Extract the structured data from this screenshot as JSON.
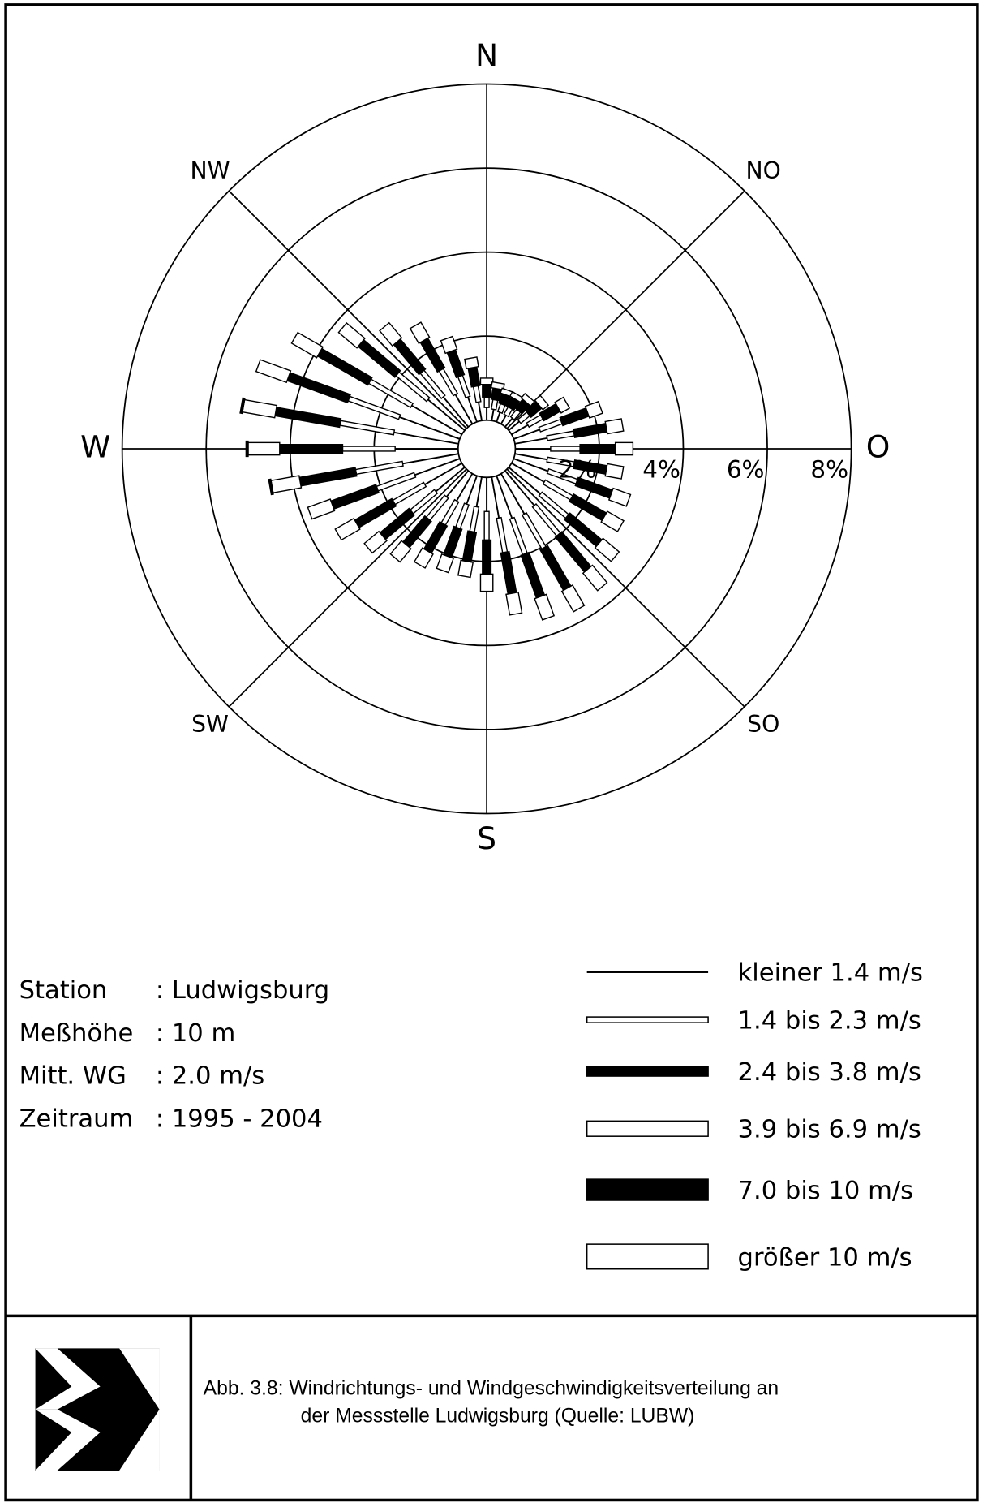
{
  "chart_data": {
    "type": "windrose",
    "directions": [
      0,
      10,
      20,
      30,
      40,
      50,
      60,
      70,
      80,
      90,
      100,
      110,
      120,
      130,
      140,
      150,
      160,
      170,
      180,
      190,
      200,
      210,
      220,
      230,
      240,
      250,
      260,
      270,
      280,
      290,
      300,
      310,
      320,
      330,
      340,
      350
    ],
    "compass": [
      "N",
      "NO",
      "O",
      "SO",
      "S",
      "SW",
      "W",
      "NW"
    ],
    "rlim": [
      0,
      8
    ],
    "rticks": [
      {
        "value": 2,
        "label": "2%"
      },
      {
        "value": 4,
        "label": "4%"
      },
      {
        "value": 6,
        "label": "6%"
      },
      {
        "value": 8,
        "label": "8%"
      }
    ],
    "series": [
      {
        "name": "kleiner 1.4 m/s",
        "color": "#000000",
        "values": [
          0.3,
          0.27,
          0.24,
          0.24,
          0.27,
          0.33,
          0.45,
          0.66,
          0.78,
          0.84,
          0.78,
          0.87,
          0.9,
          0.99,
          1.08,
          1.11,
          1.08,
          0.99,
          0.81,
          0.72,
          0.72,
          0.75,
          0.81,
          0.9,
          1.02,
          1.14,
          1.35,
          1.5,
          1.56,
          1.53,
          1.38,
          1.14,
          0.93,
          0.81,
          0.63,
          0.45
        ]
      },
      {
        "name": "1.4 bis 2.3 m/s",
        "color": "#ffffff",
        "values": [
          0.25,
          0.23,
          0.2,
          0.2,
          0.23,
          0.28,
          0.38,
          0.55,
          0.65,
          0.7,
          0.65,
          0.73,
          0.75,
          0.83,
          0.9,
          0.93,
          0.9,
          0.83,
          0.68,
          0.6,
          0.6,
          0.63,
          0.68,
          0.75,
          0.85,
          0.95,
          1.13,
          1.25,
          1.3,
          1.28,
          1.15,
          0.95,
          0.78,
          0.68,
          0.53,
          0.38
        ]
      },
      {
        "name": "2.4 bis 3.8 m/s",
        "color": "#000000",
        "values": [
          0.3,
          0.27,
          0.24,
          0.24,
          0.27,
          0.33,
          0.45,
          0.66,
          0.78,
          0.84,
          0.78,
          0.87,
          0.9,
          0.99,
          1.08,
          1.11,
          1.08,
          0.99,
          0.81,
          0.72,
          0.72,
          0.75,
          0.81,
          0.9,
          1.02,
          1.14,
          1.35,
          1.5,
          1.56,
          1.53,
          1.38,
          1.14,
          0.93,
          0.81,
          0.63,
          0.45
        ]
      },
      {
        "name": "3.9 bis 6.9 m/s",
        "color": "#ffffff",
        "values": [
          0.15,
          0.14,
          0.12,
          0.12,
          0.14,
          0.17,
          0.23,
          0.33,
          0.39,
          0.42,
          0.39,
          0.44,
          0.45,
          0.5,
          0.54,
          0.56,
          0.54,
          0.5,
          0.41,
          0.36,
          0.36,
          0.38,
          0.41,
          0.45,
          0.51,
          0.57,
          0.68,
          0.75,
          0.78,
          0.77,
          0.69,
          0.57,
          0.47,
          0.41,
          0.32,
          0.23
        ]
      },
      {
        "name": "7.0 bis 10 m/s",
        "color": "#000000",
        "values": [
          0,
          0,
          0,
          0,
          0,
          0,
          0,
          0,
          0,
          0,
          0,
          0,
          0,
          0,
          0,
          0,
          0,
          0,
          0,
          0,
          0,
          0,
          0,
          0,
          0,
          0,
          0.05,
          0.05,
          0.05,
          0,
          0,
          0,
          0,
          0,
          0,
          0
        ]
      },
      {
        "name": "größer 10 m/s",
        "color": "#ffffff",
        "values": [
          0,
          0,
          0,
          0,
          0,
          0,
          0,
          0,
          0,
          0,
          0,
          0,
          0,
          0,
          0,
          0,
          0,
          0,
          0,
          0,
          0,
          0,
          0,
          0,
          0,
          0,
          0,
          0,
          0,
          0,
          0,
          0,
          0,
          0,
          0,
          0
        ]
      }
    ]
  },
  "station": [
    {
      "label": "Station",
      "value": ": Ludwigsburg"
    },
    {
      "label": "Meßhöhe",
      "value": ": 10 m"
    },
    {
      "label": "Mitt. WG",
      "value": ": 2.0 m/s"
    },
    {
      "label": "Zeitraum",
      "value": ": 1995 - 2004"
    }
  ],
  "caption": [
    "Abb. 3.8: Windrichtungs- und Windgeschwindigkeitsverteilung an",
    "der Messstelle Ludwigsburg (Quelle: LUBW)"
  ]
}
